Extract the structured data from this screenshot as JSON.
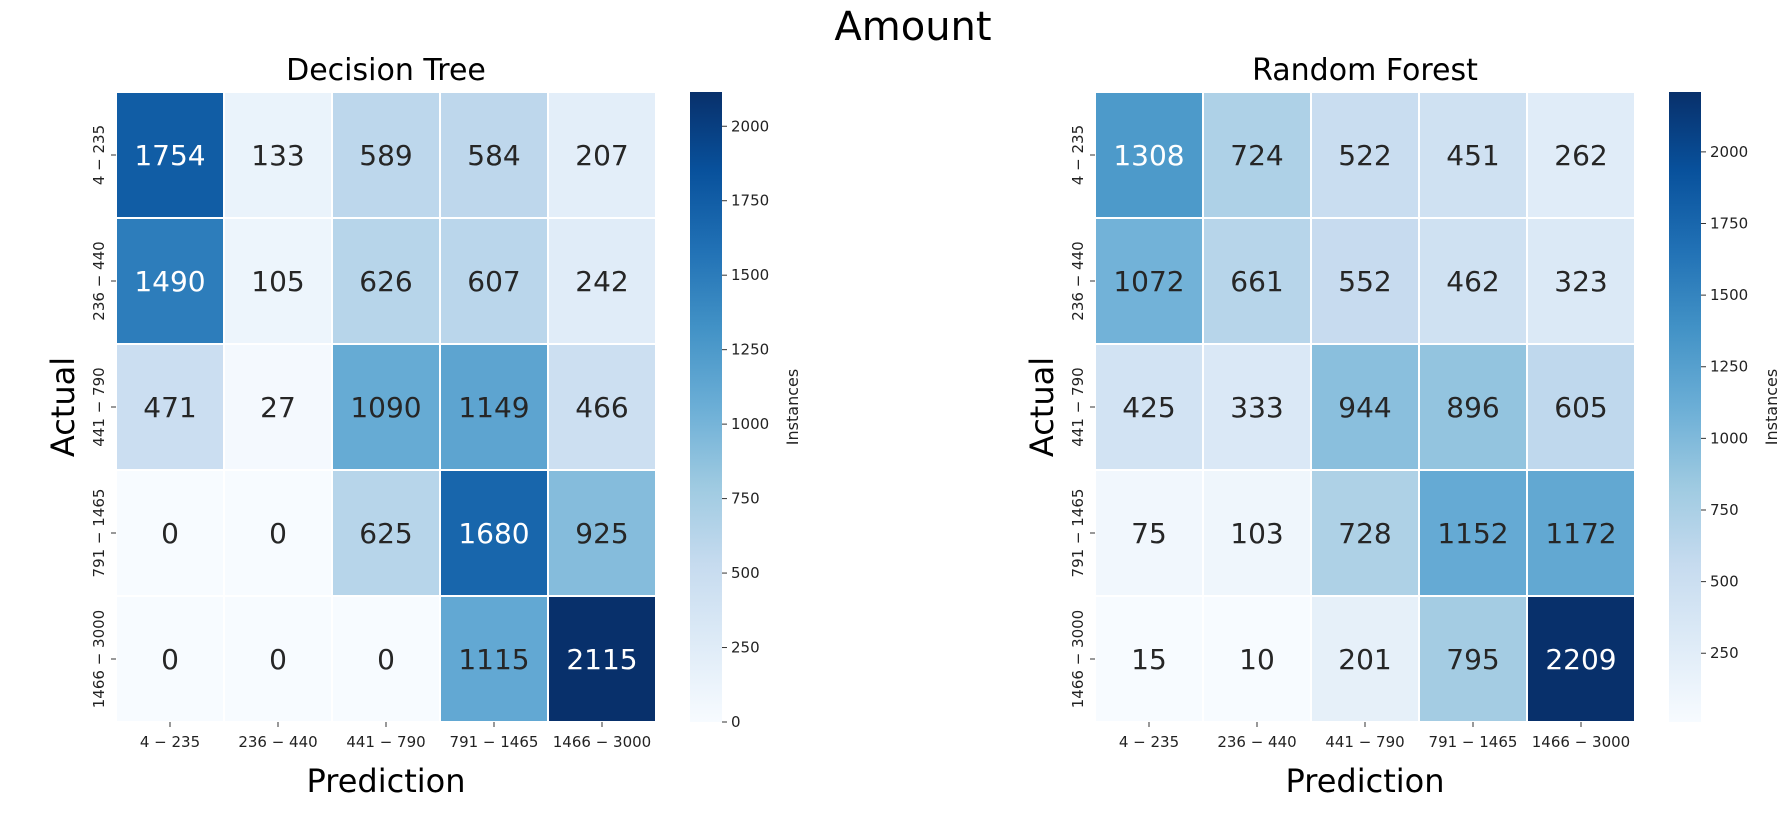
{
  "suptitle": "Amount",
  "chart_data": [
    {
      "type": "heatmap",
      "title": "Decision Tree",
      "xlabel": "Prediction",
      "ylabel": "Actual",
      "x_categories": [
        "4 − 235",
        "236 − 440",
        "441 − 790",
        "791 − 1465",
        "1466 − 3000"
      ],
      "y_categories": [
        "4 − 235",
        "236 − 440",
        "441 − 790",
        "791 − 1465",
        "1466 − 3000"
      ],
      "values": [
        [
          1754,
          133,
          589,
          584,
          207
        ],
        [
          1490,
          105,
          626,
          607,
          242
        ],
        [
          471,
          27,
          1090,
          1149,
          466
        ],
        [
          0,
          0,
          625,
          1680,
          925
        ],
        [
          0,
          0,
          0,
          1115,
          2115
        ]
      ],
      "colormap": "Blues",
      "colorbar": {
        "label": "Instances",
        "vmin": 0,
        "vmax": 2115,
        "ticks": [
          0,
          250,
          500,
          750,
          1000,
          1250,
          1500,
          1750,
          2000
        ]
      },
      "grid": false
    },
    {
      "type": "heatmap",
      "title": "Random Forest",
      "xlabel": "Prediction",
      "ylabel": "Actual",
      "x_categories": [
        "4 − 235",
        "236 − 440",
        "441 − 790",
        "791 − 1465",
        "1466 − 3000"
      ],
      "y_categories": [
        "4 − 235",
        "236 − 440",
        "441 − 790",
        "791 − 1465",
        "1466 − 3000"
      ],
      "values": [
        [
          1308,
          724,
          522,
          451,
          262
        ],
        [
          1072,
          661,
          552,
          462,
          323
        ],
        [
          425,
          333,
          944,
          896,
          605
        ],
        [
          75,
          103,
          728,
          1152,
          1172
        ],
        [
          15,
          10,
          201,
          795,
          2209
        ]
      ],
      "colormap": "Blues",
      "colorbar": {
        "label": "Instances",
        "vmin": 10,
        "vmax": 2209,
        "ticks": [
          250,
          500,
          750,
          1000,
          1250,
          1500,
          1750,
          2000
        ]
      },
      "grid": false
    }
  ]
}
